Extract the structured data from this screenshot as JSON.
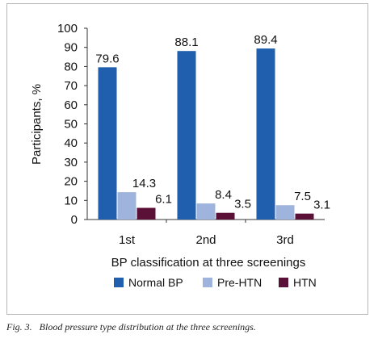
{
  "chart_data": {
    "type": "bar",
    "categories": [
      "1st",
      "2nd",
      "3rd"
    ],
    "series": [
      {
        "name": "Normal BP",
        "values": [
          79.6,
          88.1,
          89.4
        ],
        "color": "#1f5fad"
      },
      {
        "name": "Pre-HTN",
        "values": [
          14.3,
          8.4,
          7.5
        ],
        "color": "#9fb4dc"
      },
      {
        "name": "HTN",
        "values": [
          6.1,
          3.5,
          3.1
        ],
        "color": "#5b1038"
      }
    ],
    "value_labels": [
      [
        "79.6",
        "88.1",
        "89.4"
      ],
      [
        "14.3",
        "8.4",
        "7.5"
      ],
      [
        "6.1",
        "3.5",
        "3.1"
      ]
    ],
    "title": "",
    "xlabel": "BP classification at three screenings",
    "ylabel": "Participants, %",
    "ylim": [
      0,
      100
    ],
    "yticks": [
      "0",
      "10",
      "20",
      "30",
      "40",
      "50",
      "60",
      "70",
      "80",
      "90",
      "100"
    ],
    "grid": false,
    "legend_position": "bottom"
  },
  "caption": {
    "label": "Fig. 3.",
    "text": "Blood pressure type distribution at the three screenings."
  }
}
